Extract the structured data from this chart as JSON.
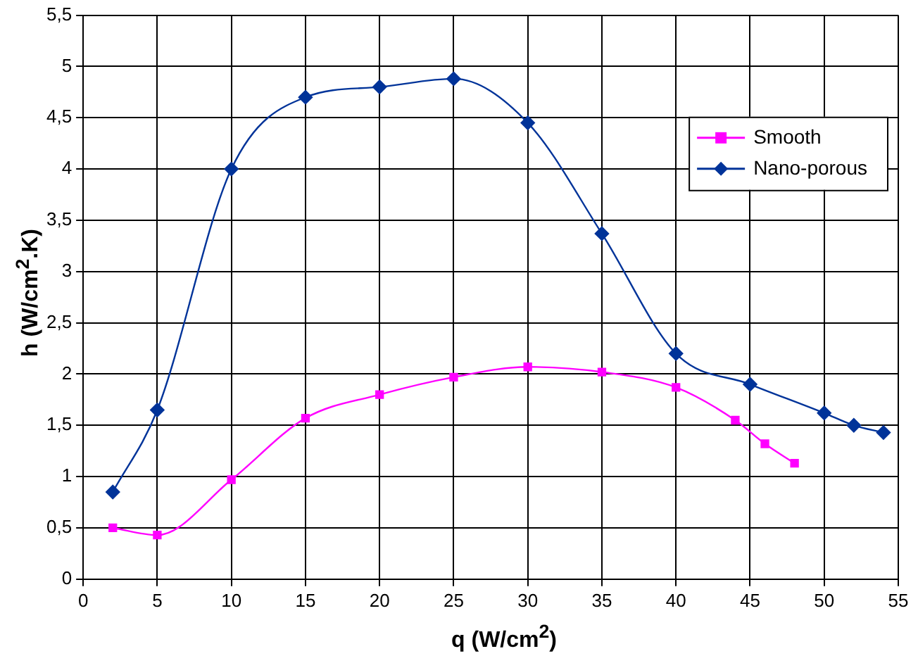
{
  "chart_data": {
    "type": "line",
    "xlabel": "q (W/cm$^{2}$)",
    "ylabel": "h (W/cm$^{2}$.K)",
    "xlim": [
      0,
      55
    ],
    "xticks": [
      0,
      5,
      10,
      15,
      20,
      25,
      30,
      35,
      40,
      45,
      50,
      55
    ],
    "ylim": [
      0,
      5.5
    ],
    "yticks": [
      0,
      {
        "value": 0.5,
        "label": "0,5"
      },
      1,
      {
        "value": 1.5,
        "label": "1,5"
      },
      2,
      {
        "value": 2.5,
        "label": "2,5"
      },
      3,
      {
        "value": 3.5,
        "label": "3,5"
      },
      4,
      {
        "value": 4.5,
        "label": "4,5"
      },
      5,
      {
        "value": 5.5,
        "label": "5,5"
      }
    ],
    "grid": true,
    "legend": "right",
    "series": [
      {
        "name": "Smooth",
        "color": "#ff00ff",
        "marker": "square",
        "x": [
          2,
          5,
          10,
          15,
          20,
          25,
          30,
          35,
          40,
          44,
          46,
          48
        ],
        "values": [
          0.5,
          0.43,
          0.97,
          1.57,
          1.8,
          1.97,
          2.07,
          2.02,
          1.87,
          1.55,
          1.32,
          1.13
        ]
      },
      {
        "name": "Nano-porous",
        "color": "#003399",
        "marker": "diamond",
        "x": [
          2,
          5,
          10,
          15,
          20,
          25,
          30,
          35,
          40,
          45,
          50,
          52,
          54
        ],
        "values": [
          0.85,
          1.65,
          4.0,
          4.7,
          4.8,
          4.88,
          4.45,
          3.37,
          2.2,
          1.9,
          1.62,
          1.5,
          1.43
        ]
      }
    ]
  }
}
